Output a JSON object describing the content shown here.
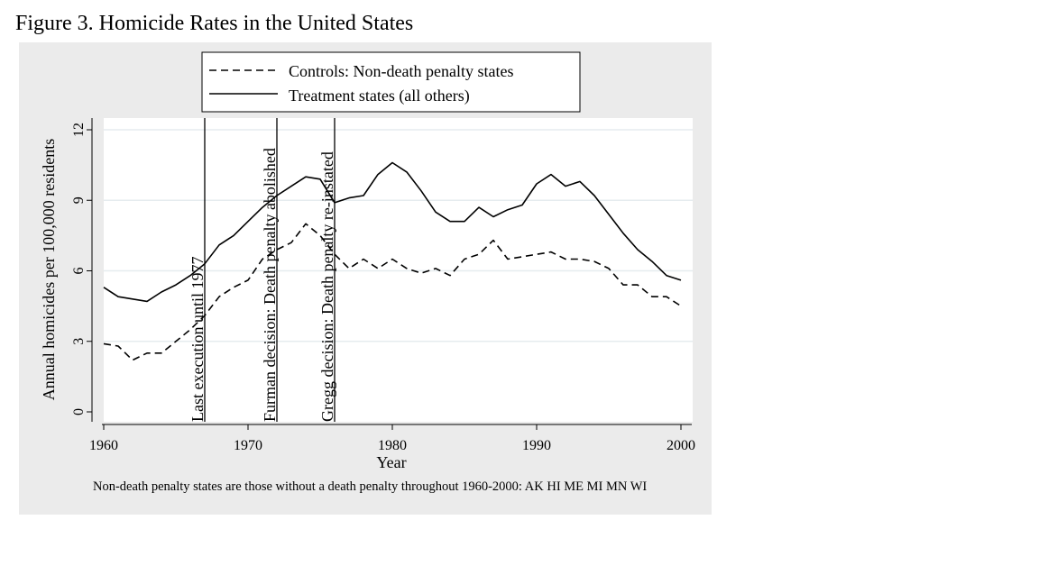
{
  "figure_title": "Figure 3. Homicide Rates in the United States",
  "chart_data": {
    "type": "line",
    "title": "",
    "xlabel": "Year",
    "ylabel": "Annual homicides per 100,000 residents",
    "xlim": [
      1960,
      2000
    ],
    "ylim": [
      0,
      12
    ],
    "x_ticks": [
      1960,
      1970,
      1980,
      1990,
      2000
    ],
    "y_ticks": [
      0,
      3,
      6,
      9,
      12
    ],
    "grid": "horizontal",
    "legend_position": "top",
    "x": [
      1960,
      1961,
      1962,
      1963,
      1964,
      1965,
      1966,
      1967,
      1968,
      1969,
      1970,
      1971,
      1972,
      1973,
      1974,
      1975,
      1976,
      1977,
      1978,
      1979,
      1980,
      1981,
      1982,
      1983,
      1984,
      1985,
      1986,
      1987,
      1988,
      1989,
      1990,
      1991,
      1992,
      1993,
      1994,
      1995,
      1996,
      1997,
      1998,
      1999,
      2000
    ],
    "series": [
      {
        "name": "Controls: Non-death penalty states",
        "line_style": "dashed",
        "color": "#000000",
        "values": [
          2.9,
          2.8,
          2.2,
          2.5,
          2.5,
          3.0,
          3.5,
          4.1,
          4.9,
          5.3,
          5.6,
          6.5,
          6.9,
          7.2,
          8.0,
          7.5,
          6.7,
          6.1,
          6.5,
          6.1,
          6.5,
          6.1,
          5.9,
          6.1,
          5.8,
          6.5,
          6.7,
          7.3,
          6.5,
          6.6,
          6.7,
          6.8,
          6.5,
          6.5,
          6.4,
          6.1,
          5.4,
          5.4,
          4.9,
          4.9,
          4.5
        ]
      },
      {
        "name": "Treatment states (all others)",
        "line_style": "solid",
        "color": "#000000",
        "values": [
          5.3,
          4.9,
          4.8,
          4.7,
          5.1,
          5.4,
          5.8,
          6.3,
          7.1,
          7.5,
          8.1,
          8.7,
          9.2,
          9.6,
          10.0,
          9.9,
          8.9,
          9.1,
          9.2,
          10.1,
          10.6,
          10.2,
          9.4,
          8.5,
          8.1,
          8.1,
          8.7,
          8.3,
          8.6,
          8.8,
          9.7,
          10.1,
          9.6,
          9.8,
          9.2,
          8.4,
          7.6,
          6.9,
          6.4,
          5.8,
          5.6
        ]
      }
    ],
    "annotations": [
      {
        "x": 1967,
        "label": "Last execution until 1977"
      },
      {
        "x": 1972,
        "label": "Furman decision: Death penalty abolished"
      },
      {
        "x": 1976,
        "label": "Gregg decision: Death penalty re-instated"
      }
    ],
    "note": "Non-death penalty states are those without a death penalty throughout 1960-2000: AK HI ME MI MN WI"
  }
}
